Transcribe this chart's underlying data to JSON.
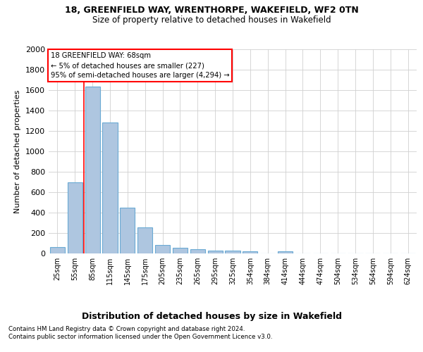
{
  "title1": "18, GREENFIELD WAY, WRENTHORPE, WAKEFIELD, WF2 0TN",
  "title2": "Size of property relative to detached houses in Wakefield",
  "xlabel": "Distribution of detached houses by size in Wakefield",
  "ylabel": "Number of detached properties",
  "bar_color": "#aec6e0",
  "bar_edge_color": "#6aaad4",
  "categories": [
    "25sqm",
    "55sqm",
    "85sqm",
    "115sqm",
    "145sqm",
    "175sqm",
    "205sqm",
    "235sqm",
    "265sqm",
    "295sqm",
    "325sqm",
    "354sqm",
    "384sqm",
    "414sqm",
    "444sqm",
    "474sqm",
    "504sqm",
    "534sqm",
    "564sqm",
    "594sqm",
    "624sqm"
  ],
  "values": [
    65,
    695,
    1635,
    1285,
    445,
    255,
    85,
    55,
    38,
    30,
    28,
    18,
    0,
    18,
    0,
    0,
    0,
    0,
    0,
    0,
    0
  ],
  "ylim": [
    0,
    2000
  ],
  "yticks": [
    0,
    200,
    400,
    600,
    800,
    1000,
    1200,
    1400,
    1600,
    1800,
    2000
  ],
  "property_line_x": 1.5,
  "annotation_line1": "18 GREENFIELD WAY: 68sqm",
  "annotation_line2": "← 5% of detached houses are smaller (227)",
  "annotation_line3": "95% of semi-detached houses are larger (4,294) →",
  "footer1": "Contains HM Land Registry data © Crown copyright and database right 2024.",
  "footer2": "Contains public sector information licensed under the Open Government Licence v3.0.",
  "bg_color": "#ffffff",
  "grid_color": "#d0d0d0"
}
